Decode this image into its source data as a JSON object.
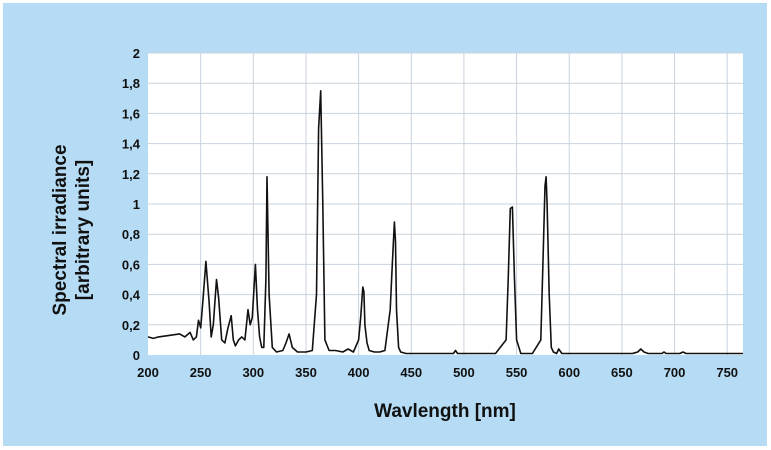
{
  "chart_data": {
    "type": "line",
    "xlabel": "Wavlength [nm]",
    "ylabel_line1": "Spectral irradiance",
    "ylabel_line2": "[arbitrary units]",
    "xlim": [
      200,
      765
    ],
    "ylim": [
      0,
      2
    ],
    "x_ticks": [
      200,
      250,
      300,
      350,
      400,
      450,
      500,
      550,
      600,
      650,
      700,
      750
    ],
    "x_tick_labels": [
      "200",
      "250",
      "300",
      "350",
      "400",
      "450",
      "500",
      "550",
      "600",
      "650",
      "700",
      "750"
    ],
    "y_ticks": [
      0,
      0.2,
      0.4,
      0.6,
      0.8,
      1,
      1.2,
      1.4,
      1.6,
      1.8,
      2
    ],
    "y_tick_labels": [
      "0",
      "0,2",
      "0,4",
      "0,6",
      "0,8",
      "1",
      "1,2",
      "1,4",
      "1,6",
      "1,8",
      "2"
    ],
    "grid": true,
    "colors": {
      "background": "#b5dcf4",
      "plot_area": "#ffffff",
      "grid": "#c9d3de",
      "line": "#111111"
    },
    "series": [
      {
        "x": [
          200,
          205,
          210,
          220,
          230,
          235,
          240,
          243,
          246,
          248,
          250,
          252,
          255,
          258,
          260,
          262,
          265,
          267,
          270,
          273,
          276,
          279,
          281,
          283,
          286,
          289,
          292,
          295,
          297,
          299,
          302,
          304,
          306,
          308,
          310,
          312,
          313,
          315,
          318,
          322,
          328,
          331,
          334,
          337,
          342,
          350,
          356,
          360,
          362,
          364,
          366,
          368,
          372,
          378,
          385,
          390,
          395,
          400,
          402,
          404,
          405,
          406,
          408,
          410,
          415,
          420,
          425,
          430,
          432,
          434,
          435,
          436,
          438,
          440,
          445,
          455,
          470,
          480,
          490,
          492,
          494,
          500,
          515,
          530,
          540,
          542,
          544,
          546,
          548,
          550,
          554,
          565,
          573,
          575,
          577,
          578,
          579,
          581,
          583,
          585,
          588,
          590,
          593,
          610,
          640,
          660,
          665,
          668,
          671,
          675,
          688,
          690,
          692,
          705,
          708,
          711,
          725,
          765
        ],
        "y": [
          0.12,
          0.11,
          0.12,
          0.13,
          0.14,
          0.12,
          0.15,
          0.1,
          0.12,
          0.23,
          0.18,
          0.35,
          0.62,
          0.35,
          0.12,
          0.2,
          0.5,
          0.38,
          0.1,
          0.08,
          0.18,
          0.26,
          0.1,
          0.06,
          0.1,
          0.12,
          0.1,
          0.3,
          0.2,
          0.25,
          0.6,
          0.3,
          0.12,
          0.05,
          0.05,
          0.5,
          1.18,
          0.4,
          0.05,
          0.02,
          0.03,
          0.08,
          0.14,
          0.05,
          0.02,
          0.02,
          0.03,
          0.4,
          1.5,
          1.75,
          1.0,
          0.1,
          0.03,
          0.03,
          0.02,
          0.04,
          0.02,
          0.1,
          0.25,
          0.45,
          0.42,
          0.2,
          0.08,
          0.03,
          0.02,
          0.02,
          0.03,
          0.3,
          0.6,
          0.88,
          0.75,
          0.3,
          0.05,
          0.02,
          0.01,
          0.01,
          0.01,
          0.01,
          0.01,
          0.03,
          0.01,
          0.01,
          0.01,
          0.01,
          0.1,
          0.5,
          0.97,
          0.98,
          0.5,
          0.1,
          0.01,
          0.01,
          0.1,
          0.6,
          1.12,
          1.18,
          1.0,
          0.4,
          0.05,
          0.02,
          0.01,
          0.04,
          0.01,
          0.01,
          0.01,
          0.01,
          0.02,
          0.04,
          0.02,
          0.01,
          0.01,
          0.02,
          0.01,
          0.01,
          0.02,
          0.01,
          0.01,
          0.01
        ]
      }
    ]
  }
}
